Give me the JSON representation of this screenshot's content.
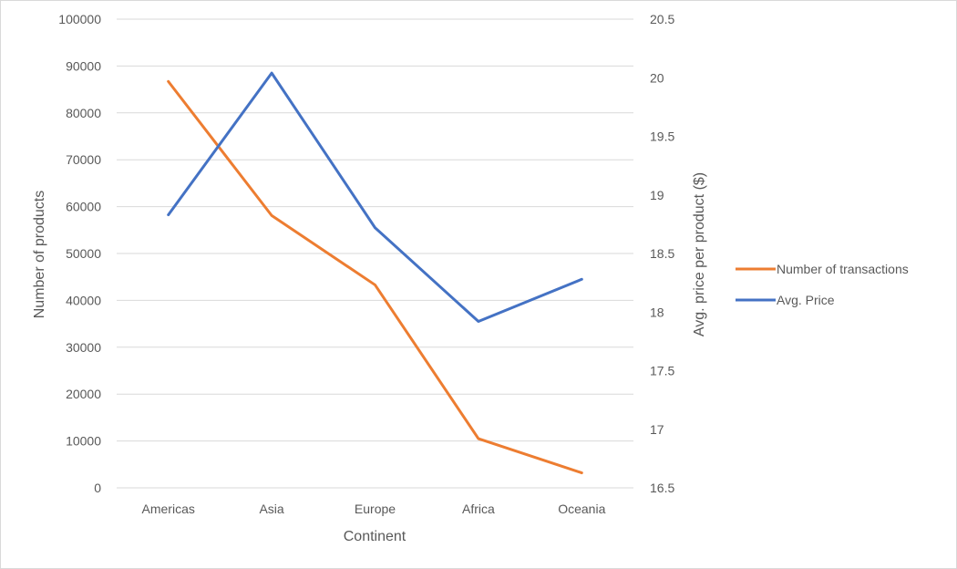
{
  "chart_data": {
    "type": "line",
    "categories": [
      "Americas",
      "Asia",
      "Europe",
      "Africa",
      "Oceania"
    ],
    "xlabel": "Continent",
    "ylabel": "Number of products",
    "y2label": "Avg. price per product ($)",
    "ylim": [
      0,
      100000
    ],
    "y2lim": [
      16.5,
      20.5
    ],
    "y_ticks": [
      "0",
      "10000",
      "20000",
      "30000",
      "40000",
      "50000",
      "60000",
      "70000",
      "80000",
      "90000",
      "100000"
    ],
    "y2_ticks": [
      "16.5",
      "17",
      "17.5",
      "18",
      "18.5",
      "19",
      "19.5",
      "20",
      "20.5"
    ],
    "grid": true,
    "legend_position": "right",
    "series": [
      {
        "name": "Number of transactions",
        "axis": "left",
        "color": "#ED7D31",
        "values": [
          86700,
          58100,
          43300,
          10500,
          3200
        ]
      },
      {
        "name": "Avg. Price",
        "axis": "right",
        "color": "#4472C4",
        "values": [
          18.83,
          20.04,
          18.72,
          17.92,
          18.28
        ]
      }
    ]
  }
}
